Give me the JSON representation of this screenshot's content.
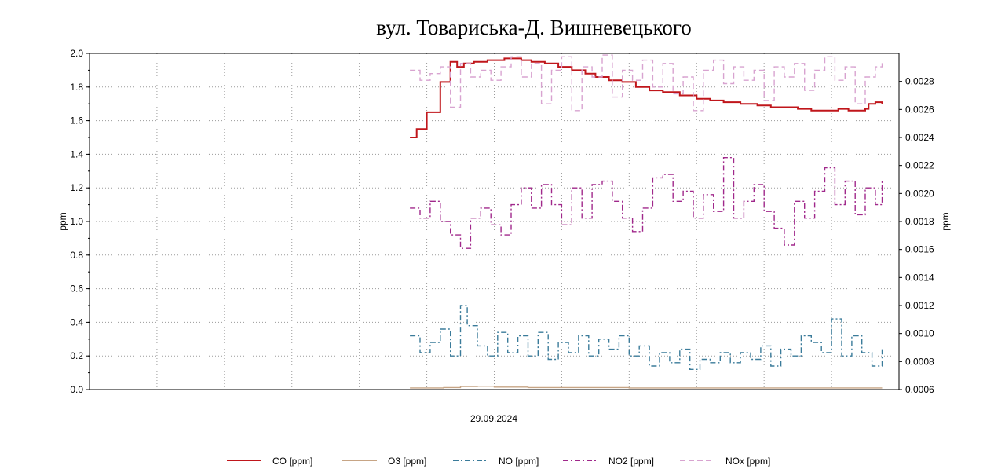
{
  "chart_data": {
    "type": "line",
    "title": "вул. Товариська-Д. Вишневецького",
    "xlabel": "29.09.2024",
    "ylabel_left": "ppm",
    "ylabel_right": "ppm",
    "ylim_left": [
      0,
      2
    ],
    "ylim_right": [
      0.0006,
      0.003
    ],
    "left_ticks": [
      "0.0",
      "0.2",
      "0.4",
      "0.6",
      "0.8",
      "1.0",
      "1.2",
      "1.4",
      "1.6",
      "1.8",
      "2.0"
    ],
    "right_ticks": [
      "0.0006",
      "0.0008",
      "0.0010",
      "0.0012",
      "0.0014",
      "0.0016",
      "0.0018",
      "0.0020",
      "0.0022",
      "0.0024",
      "0.0026",
      "0.0028"
    ],
    "x_range": [
      0,
      24
    ],
    "grid": true,
    "legend_position": "bottom",
    "series": [
      {
        "name": "CO [ppm]",
        "color": "#c0161b",
        "dash": "solid",
        "axis": "left",
        "x": [
          9.5,
          9.7,
          10.0,
          10.4,
          10.7,
          10.9,
          11.1,
          11.4,
          11.8,
          12.3,
          12.8,
          13.1,
          13.5,
          13.9,
          14.3,
          14.7,
          15.0,
          15.4,
          15.8,
          16.2,
          16.6,
          17.0,
          17.5,
          18.0,
          18.4,
          18.8,
          19.3,
          19.8,
          20.2,
          20.6,
          21.0,
          21.4,
          21.8,
          22.2,
          22.5,
          22.8,
          23.0,
          23.1,
          23.3,
          23.5
        ],
        "y": [
          1.5,
          1.55,
          1.65,
          1.83,
          1.95,
          1.92,
          1.94,
          1.95,
          1.96,
          1.97,
          1.96,
          1.95,
          1.94,
          1.92,
          1.9,
          1.88,
          1.86,
          1.84,
          1.83,
          1.8,
          1.78,
          1.77,
          1.75,
          1.73,
          1.72,
          1.71,
          1.7,
          1.69,
          1.68,
          1.68,
          1.67,
          1.66,
          1.66,
          1.67,
          1.66,
          1.66,
          1.67,
          1.7,
          1.71,
          1.7
        ]
      },
      {
        "name": "O3 [ppm]",
        "color": "#c7a585",
        "dash": "solid",
        "axis": "left",
        "x": [
          9.5,
          10.5,
          11.0,
          11.5,
          12.0,
          13.0,
          16.0,
          20.0,
          23.5
        ],
        "y": [
          0.01,
          0.012,
          0.018,
          0.02,
          0.015,
          0.012,
          0.01,
          0.01,
          0.01
        ]
      },
      {
        "name": "NO [ppm]",
        "color": "#3a7b9a",
        "dash": "dashdot",
        "axis": "left",
        "x": [
          9.5,
          9.8,
          10.1,
          10.4,
          10.7,
          11.0,
          11.2,
          11.5,
          11.8,
          12.1,
          12.4,
          12.7,
          13.0,
          13.3,
          13.6,
          13.9,
          14.2,
          14.5,
          14.8,
          15.1,
          15.4,
          15.7,
          16.0,
          16.3,
          16.6,
          16.9,
          17.2,
          17.5,
          17.8,
          18.1,
          18.4,
          18.7,
          19.0,
          19.3,
          19.6,
          19.9,
          20.2,
          20.5,
          20.8,
          21.1,
          21.4,
          21.7,
          22.0,
          22.3,
          22.6,
          22.9,
          23.2,
          23.5
        ],
        "y": [
          0.32,
          0.22,
          0.28,
          0.36,
          0.2,
          0.5,
          0.38,
          0.26,
          0.2,
          0.34,
          0.22,
          0.32,
          0.2,
          0.34,
          0.18,
          0.28,
          0.22,
          0.32,
          0.2,
          0.3,
          0.24,
          0.32,
          0.2,
          0.26,
          0.14,
          0.22,
          0.16,
          0.24,
          0.12,
          0.18,
          0.16,
          0.22,
          0.16,
          0.22,
          0.18,
          0.26,
          0.14,
          0.24,
          0.2,
          0.32,
          0.28,
          0.22,
          0.42,
          0.2,
          0.32,
          0.22,
          0.14,
          0.24
        ]
      },
      {
        "name": "NO2 [ppm]",
        "color": "#a0288b",
        "dash": "dashdot",
        "axis": "left",
        "x": [
          9.5,
          9.8,
          10.1,
          10.4,
          10.7,
          11.0,
          11.3,
          11.6,
          11.9,
          12.2,
          12.5,
          12.8,
          13.1,
          13.4,
          13.7,
          14.0,
          14.3,
          14.6,
          14.9,
          15.2,
          15.5,
          15.8,
          16.1,
          16.4,
          16.7,
          17.0,
          17.3,
          17.6,
          17.9,
          18.2,
          18.5,
          18.8,
          19.1,
          19.4,
          19.7,
          20.0,
          20.3,
          20.6,
          20.9,
          21.2,
          21.5,
          21.8,
          22.1,
          22.4,
          22.7,
          23.0,
          23.3,
          23.5
        ],
        "y": [
          1.08,
          1.02,
          1.12,
          1.0,
          0.92,
          0.84,
          1.02,
          1.08,
          0.98,
          0.92,
          1.1,
          1.2,
          1.08,
          1.22,
          1.1,
          0.98,
          1.2,
          1.02,
          1.22,
          1.24,
          1.12,
          1.02,
          0.94,
          1.08,
          1.26,
          1.28,
          1.12,
          1.18,
          1.02,
          1.16,
          1.06,
          1.38,
          1.02,
          1.12,
          1.22,
          1.06,
          0.96,
          0.86,
          1.12,
          1.02,
          1.18,
          1.32,
          1.1,
          1.24,
          1.04,
          1.2,
          1.1,
          1.25
        ]
      },
      {
        "name": "NOx [ppm]",
        "color": "#d8a3d0",
        "dash": "dashed",
        "axis": "left",
        "x": [
          9.5,
          9.8,
          10.1,
          10.4,
          10.7,
          11.0,
          11.3,
          11.6,
          11.9,
          12.2,
          12.5,
          12.8,
          13.1,
          13.4,
          13.7,
          14.0,
          14.3,
          14.6,
          14.9,
          15.2,
          15.5,
          15.8,
          16.1,
          16.4,
          16.7,
          17.0,
          17.3,
          17.6,
          17.9,
          18.2,
          18.5,
          18.8,
          19.1,
          19.4,
          19.7,
          20.0,
          20.3,
          20.6,
          20.9,
          21.2,
          21.5,
          21.8,
          22.1,
          22.4,
          22.7,
          23.0,
          23.3,
          23.5
        ],
        "y": [
          1.9,
          1.84,
          1.88,
          1.92,
          1.68,
          1.94,
          1.86,
          1.9,
          1.84,
          1.92,
          1.98,
          1.86,
          1.94,
          1.7,
          1.9,
          1.98,
          1.66,
          1.92,
          1.86,
          1.99,
          1.74,
          1.9,
          1.84,
          1.96,
          1.8,
          1.94,
          1.76,
          1.86,
          1.66,
          1.9,
          1.96,
          1.82,
          1.92,
          1.84,
          1.9,
          1.72,
          1.92,
          1.86,
          1.94,
          1.78,
          1.9,
          1.98,
          1.84,
          1.92,
          1.7,
          1.86,
          1.92,
          1.96
        ]
      }
    ]
  }
}
